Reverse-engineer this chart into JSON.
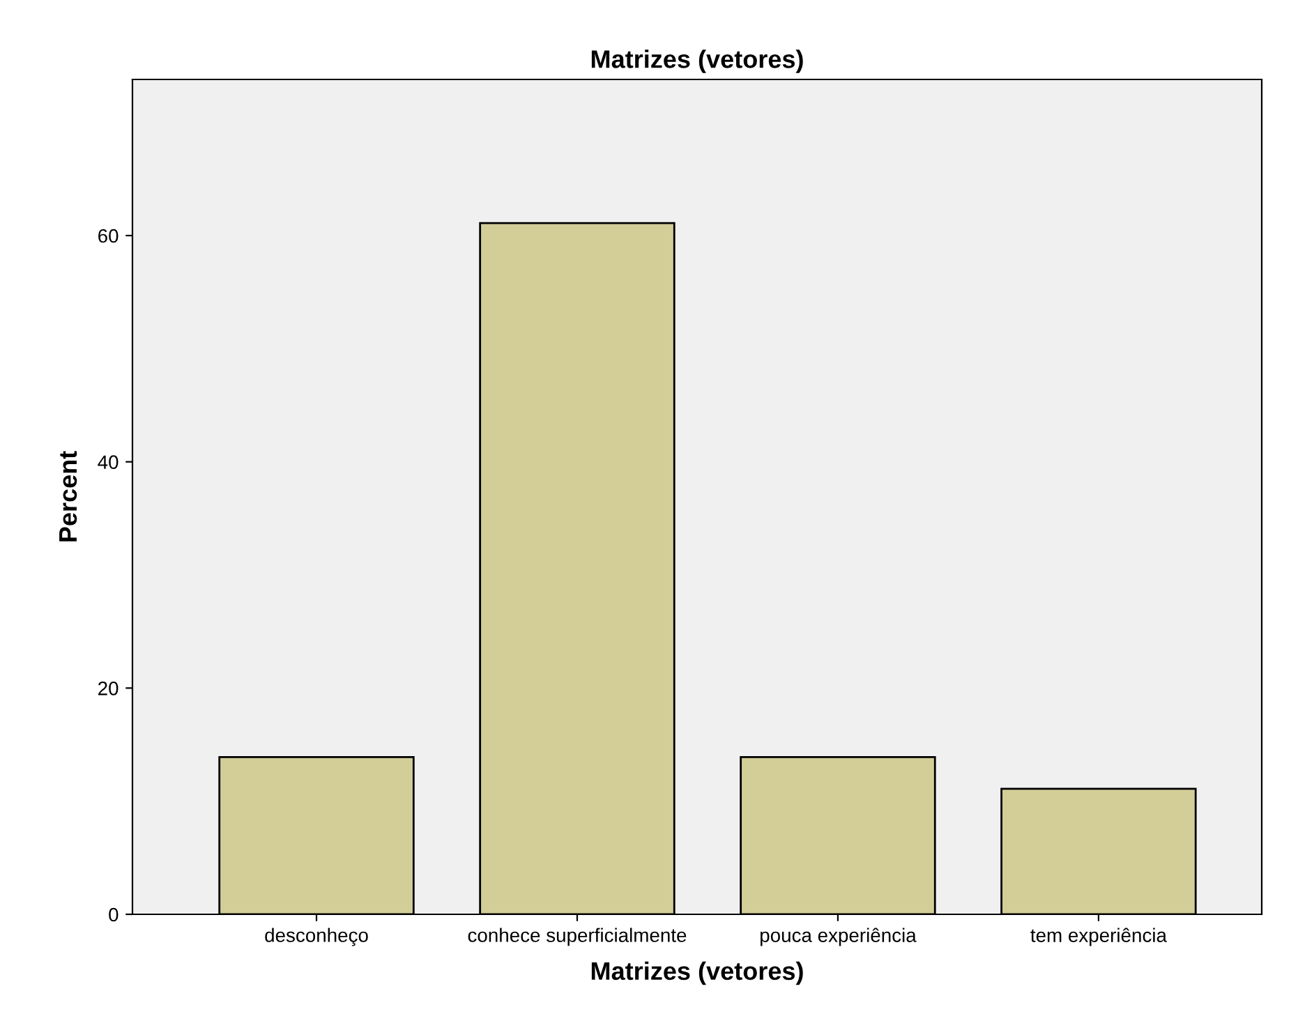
{
  "chart_data": {
    "type": "bar",
    "title": "Matrizes (vetores)",
    "xlabel": "Matrizes (vetores)",
    "ylabel": "Percent",
    "categories": [
      "desconheço",
      "conhece superficialmente",
      "pouca experiência",
      "tem experiência"
    ],
    "values": [
      13.9,
      61.1,
      13.9,
      11.1
    ],
    "color": "#d3ce98",
    "ylim": [
      0,
      73.8
    ],
    "yticks": [
      0,
      20,
      40,
      60
    ],
    "grid": false
  }
}
